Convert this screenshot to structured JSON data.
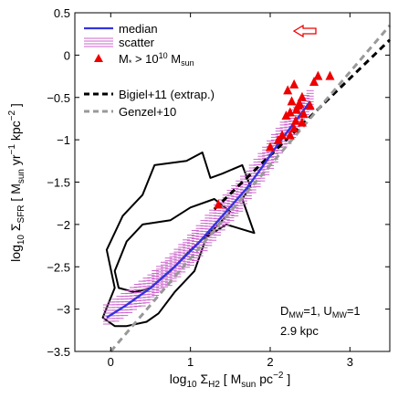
{
  "chart_data": {
    "type": "line",
    "xlabel": {
      "main": "log",
      "sub1": "10",
      "mid": " Σ",
      "sub2": "H2",
      "rest": " [ M",
      "sub3": "sun",
      "rest2": " pc",
      "sup": "−2",
      "end": " ]"
    },
    "ylabel": {
      "main": "log",
      "sub1": "10",
      "mid": " Σ",
      "sub2": "SFR",
      "rest": " [ M",
      "sub3": "sun",
      "rest2": " yr",
      "sup1": "−1",
      "rest3": " kpc",
      "sup2": "−2",
      "end": " ]"
    },
    "xlim": [
      -0.45,
      3.5
    ],
    "ylim": [
      -3.5,
      0.5
    ],
    "xticks": [
      0,
      1,
      2,
      3
    ],
    "xtick_labels": [
      "0",
      "1",
      "2",
      "3"
    ],
    "yticks": [
      -3.5,
      -3,
      -2.5,
      -2,
      -1.5,
      -1,
      -0.5,
      0,
      0.5
    ],
    "ytick_labels": [
      "−3.5",
      "−3",
      "−2.5",
      "−2",
      "−1.5",
      "−1",
      "−0.5",
      "0",
      "0.5"
    ],
    "legend": {
      "position": "top-left",
      "entries": [
        {
          "label": "median",
          "style": "solid",
          "color": "#3333dd"
        },
        {
          "label": "scatter",
          "style": "hatch",
          "color": "#cc66cc"
        },
        {
          "label_main": "M",
          "label_sub": "*",
          "label_mid": " > 10",
          "label_sup": "10",
          "label_rest": " M",
          "label_sub2": "sun",
          "style": "triangle",
          "color": "#ee0000"
        },
        {
          "label": "Bigiel+11 (extrap.)",
          "style": "dashed",
          "color": "#000000"
        },
        {
          "label": "Genzel+10",
          "style": "dashed",
          "color": "#999999"
        }
      ]
    },
    "annotation": {
      "line1_a": "D",
      "line1_a_sub": "MW",
      "line1_b": "=1, U",
      "line1_b_sub": "MW",
      "line1_c": "=1",
      "line2": "2.9 kpc"
    },
    "series": [
      {
        "name": "median",
        "color": "#3333dd",
        "x": [
          -0.05,
          0.2,
          0.5,
          0.8,
          1.1,
          1.4,
          1.7,
          1.9,
          2.1,
          2.3,
          2.5
        ],
        "y": [
          -3.1,
          -2.95,
          -2.75,
          -2.5,
          -2.22,
          -1.9,
          -1.58,
          -1.32,
          -1.05,
          -0.8,
          -0.55
        ]
      },
      {
        "name": "scatter",
        "color": "#cc66cc",
        "x": [
          -0.05,
          0.2,
          0.5,
          0.8,
          1.1,
          1.4,
          1.7,
          1.9,
          2.1,
          2.3,
          2.5
        ],
        "y_low": [
          -3.2,
          -3.08,
          -2.9,
          -2.67,
          -2.4,
          -2.08,
          -1.75,
          -1.5,
          -1.2,
          -0.95,
          -0.65
        ],
        "y_high": [
          -2.95,
          -2.8,
          -2.6,
          -2.33,
          -2.03,
          -1.7,
          -1.4,
          -1.15,
          -0.88,
          -0.62,
          -0.42
        ]
      },
      {
        "name": "Bigiel+11 (extrap.)",
        "color": "#000000",
        "x": [
          1.3,
          3.5
        ],
        "y": [
          -1.82,
          0.18
        ]
      },
      {
        "name": "Genzel+10",
        "color": "#999999",
        "x": [
          0,
          3.5
        ],
        "y": [
          -3.5,
          0.35
        ]
      }
    ],
    "triangles": {
      "color": "#ee0000",
      "points": [
        [
          1.35,
          -1.77
        ],
        [
          2.0,
          -1.09
        ],
        [
          2.1,
          -1.01
        ],
        [
          2.15,
          -0.95
        ],
        [
          2.2,
          -0.72
        ],
        [
          2.22,
          -0.42
        ],
        [
          2.25,
          -0.68
        ],
        [
          2.25,
          -0.95
        ],
        [
          2.27,
          -0.55
        ],
        [
          2.3,
          -0.35
        ],
        [
          2.3,
          -0.87
        ],
        [
          2.32,
          -0.78
        ],
        [
          2.33,
          -0.65
        ],
        [
          2.35,
          -0.6
        ],
        [
          2.37,
          -0.58
        ],
        [
          2.4,
          -0.8
        ],
        [
          2.4,
          -0.5
        ],
        [
          2.42,
          -0.7
        ],
        [
          2.5,
          -0.6
        ],
        [
          2.55,
          -0.32
        ],
        [
          2.6,
          -0.25
        ],
        [
          2.75,
          -0.25
        ]
      ]
    },
    "contours": [
      {
        "name": "outer",
        "points": [
          [
            -0.1,
            -3.1
          ],
          [
            0.05,
            -2.75
          ],
          [
            -0.05,
            -2.3
          ],
          [
            0.15,
            -1.9
          ],
          [
            0.4,
            -1.65
          ],
          [
            0.55,
            -1.3
          ],
          [
            0.95,
            -1.25
          ],
          [
            1.15,
            -1.15
          ],
          [
            1.25,
            -1.45
          ],
          [
            1.4,
            -1.4
          ],
          [
            1.65,
            -1.3
          ],
          [
            1.75,
            -1.55
          ],
          [
            1.65,
            -1.7
          ],
          [
            1.8,
            -2.1
          ],
          [
            1.45,
            -2.0
          ],
          [
            1.2,
            -2.15
          ],
          [
            1.05,
            -2.55
          ],
          [
            0.8,
            -2.8
          ],
          [
            0.6,
            -3.05
          ],
          [
            0.45,
            -3.15
          ],
          [
            0.2,
            -3.2
          ],
          [
            0.05,
            -3.2
          ]
        ]
      },
      {
        "name": "inner",
        "points": [
          [
            0.05,
            -2.55
          ],
          [
            0.2,
            -2.2
          ],
          [
            0.4,
            -2.0
          ],
          [
            0.75,
            -1.95
          ],
          [
            1.0,
            -1.8
          ],
          [
            1.3,
            -1.7
          ],
          [
            1.5,
            -1.85
          ],
          [
            1.3,
            -2.05
          ],
          [
            1.0,
            -2.3
          ],
          [
            0.75,
            -2.55
          ],
          [
            0.5,
            -2.75
          ],
          [
            0.3,
            -2.8
          ],
          [
            0.1,
            -2.75
          ]
        ]
      }
    ],
    "arrow": {
      "color": "#ee0000"
    }
  }
}
